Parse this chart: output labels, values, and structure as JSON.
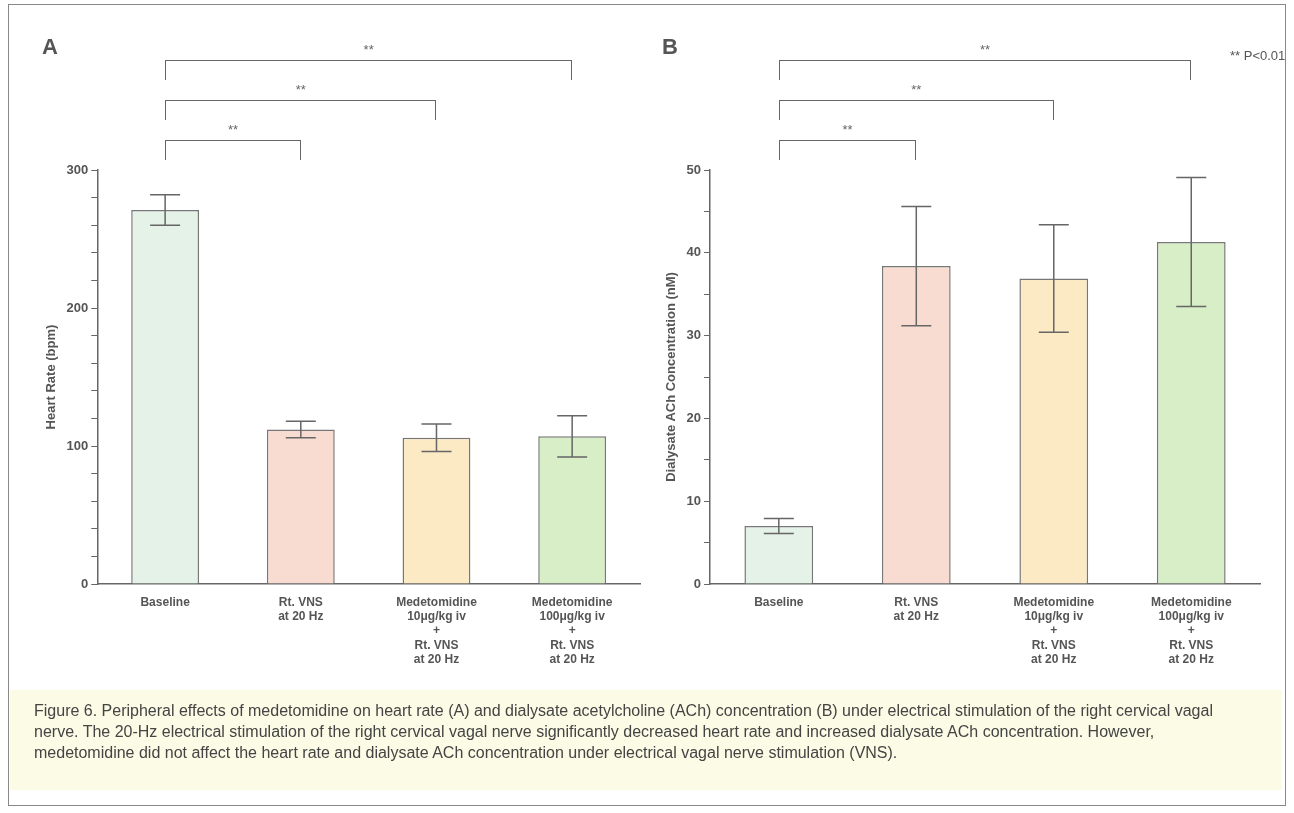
{
  "chart_data": [
    {
      "type": "bar",
      "title": "A",
      "ylabel": "Heart Rate (bpm)",
      "categories": [
        "Baseline",
        "Rt. VNS\nat 20 Hz",
        "Medetomidine\n10μg/kg iv\n+\nRt. VNS\nat 20 Hz",
        "Medetomidine\n100μg/kg iv\n+\nRt. VNS\nat 20 Hz"
      ],
      "values": [
        271,
        112,
        106,
        107
      ],
      "errors": [
        11,
        6,
        10,
        15
      ],
      "colors": [
        "#e4f2e8",
        "#f8dcd2",
        "#fbeac4",
        "#d8eec6"
      ],
      "ylim": [
        0,
        300
      ],
      "yticks": [
        0,
        {
          "value": 20,
          "label": null
        },
        {
          "value": 40,
          "label": null
        },
        {
          "value": 60,
          "label": null
        },
        {
          "value": 80,
          "label": null
        },
        100,
        {
          "value": 120,
          "label": null
        },
        {
          "value": 140,
          "label": null
        },
        {
          "value": 160,
          "label": null
        },
        {
          "value": 180,
          "label": null
        },
        200,
        {
          "value": 220,
          "label": null
        },
        {
          "value": 240,
          "label": null
        },
        {
          "value": 260,
          "label": null
        },
        {
          "value": 280,
          "label": null
        },
        300
      ],
      "annotations": [
        "**",
        "**",
        "**",
        "Figure 6.  Peripheral effects of medetomidine on heart rate (A) and dialysate acetylcholine (ACh) concentration (B) under electrical stimulation of the right cervical vagal nerve. The 20-Hz electrical stimulation of the right cervical vagal nerve significantly decreased heart rate and increased dialysate ACh concentration. However, medetomidine did not affect the heart rate and dialysate ACh concentration under electrical vagal nerve stimulation (VNS)."
      ]
    },
    {
      "type": "bar",
      "title": "B",
      "ylabel": "Dialysate ACh Concentration (nM)",
      "categories": [
        "Baseline",
        "Rt. VNS\nat 20 Hz",
        "Medetomidine\n10μg/kg iv\n+\nRt. VNS\nat 20 Hz",
        "Medetomidine\n100μg/kg iv\n+\nRt. VNS\nat 20 Hz"
      ],
      "values": [
        7,
        38.4,
        36.9,
        41.3
      ],
      "errors": [
        0.9,
        7.2,
        6.5,
        7.8
      ],
      "colors": [
        "#e4f2e8",
        "#f8dcd2",
        "#fbeac4",
        "#d8eec6"
      ],
      "ylim": [
        0,
        50
      ],
      "yticks": [
        0,
        {
          "value": 5,
          "label": null
        },
        10,
        {
          "value": 15,
          "label": null
        },
        20,
        {
          "value": 25,
          "label": null
        },
        30,
        {
          "value": 35,
          "label": null
        },
        40,
        {
          "value": 45,
          "label": null
        },
        50
      ],
      "annotations": [
        "**",
        "**",
        "**",
        "** P<0.01"
      ]
    }
  ]
}
